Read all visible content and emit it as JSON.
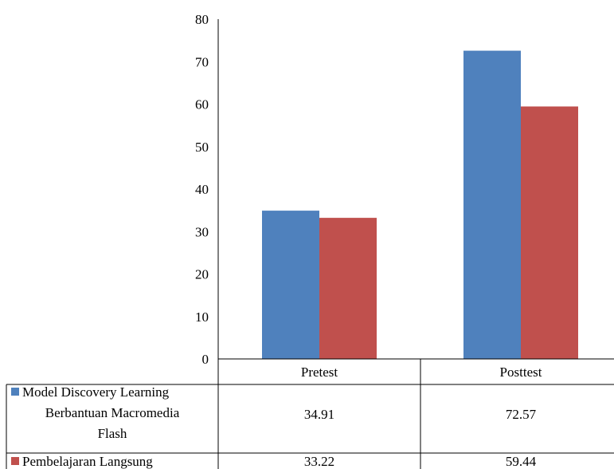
{
  "chart_data": {
    "type": "bar",
    "categories": [
      "Pretest",
      "Posttest"
    ],
    "series": [
      {
        "name": "Model Discovery Learning Berbantuan Macromedia Flash",
        "legend_lines": [
          "Model Discovery Learning",
          "Berbantuan Macromedia",
          "Flash"
        ],
        "values": [
          34.91,
          72.57
        ],
        "value_labels": [
          "34.91",
          "72.57"
        ],
        "color": "#4F81BD"
      },
      {
        "name": "Pembelajaran Langsung",
        "legend_lines": [
          "Pembelajaran Langsung"
        ],
        "values": [
          33.22,
          59.44
        ],
        "value_labels": [
          "33.22",
          "59.44"
        ],
        "color": "#C0504D"
      }
    ],
    "title": "",
    "xlabel": "",
    "ylabel": "",
    "ylim": [
      0,
      80
    ],
    "yticks": [
      0,
      10,
      20,
      30,
      40,
      50,
      60,
      70,
      80
    ],
    "grid": false,
    "data_table": true
  }
}
